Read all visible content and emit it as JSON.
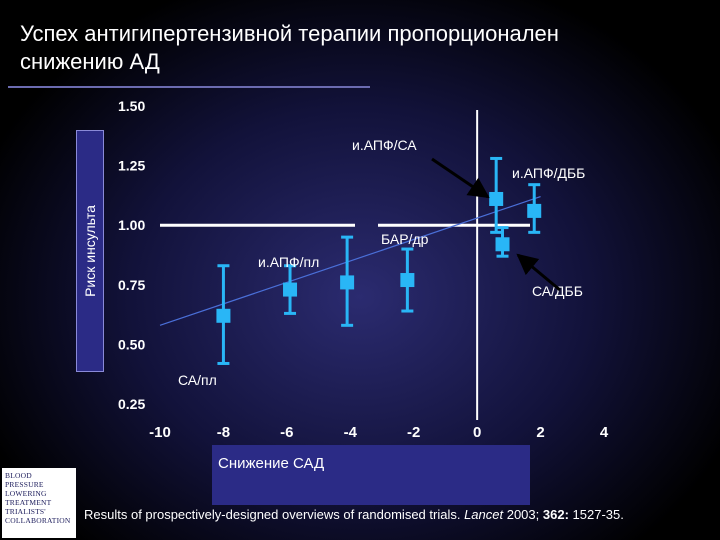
{
  "slide": {
    "title": "Успех антигипертензивной терапии пропорционален снижению АД",
    "citation_prefix": "Results of prospectively-designed overviews of randomised trials. ",
    "citation_journal": "Lancet",
    "citation_year": " 2003; ",
    "citation_volume": "362:",
    "citation_pages": " 1527-35.",
    "logo_lines": [
      "BLOOD",
      "PRESSURE",
      "LOWERING",
      "TREATMENT",
      "TRIALISTS'",
      "COLLABORATION"
    ]
  },
  "colors": {
    "marker": "#29b6f6",
    "axis": "#ffffff",
    "regression": "#4a6fd8",
    "text": "#ffffff",
    "label_box": "#2b2b86"
  },
  "chart_data": {
    "type": "scatter",
    "xlabel": "Снижение САД",
    "ylabel": "Риск инсульта",
    "xlim": [
      -10,
      4
    ],
    "ylim": [
      0.25,
      1.5
    ],
    "x_ticks": [
      -10,
      -8,
      -6,
      -4,
      -2,
      0,
      2,
      4
    ],
    "y_ticks": [
      0.25,
      0.5,
      0.75,
      1.0,
      1.25,
      1.5
    ],
    "x_tick_labels": [
      "-10",
      "-8",
      "-6",
      "-4",
      "-2",
      "0",
      "2",
      "4"
    ],
    "y_tick_labels": [
      "0.25",
      "0.50",
      "0.75",
      "1.00",
      "1.25",
      "1.50"
    ],
    "reference_lines": {
      "y": 1.0,
      "x": 0
    },
    "regression_line": {
      "x": [
        -10,
        2
      ],
      "y": [
        0.58,
        1.12
      ]
    },
    "points": [
      {
        "x": -8.0,
        "y": 0.62,
        "low": 0.42,
        "high": 0.83
      },
      {
        "x": -5.9,
        "y": 0.73,
        "low": 0.63,
        "high": 0.83
      },
      {
        "x": -4.1,
        "y": 0.76,
        "low": 0.58,
        "high": 0.95
      },
      {
        "x": -2.2,
        "y": 0.77,
        "low": 0.64,
        "high": 0.9
      },
      {
        "x": 0.6,
        "y": 1.11,
        "low": 0.97,
        "high": 1.28
      },
      {
        "x": 1.8,
        "y": 1.06,
        "low": 0.97,
        "high": 1.17
      },
      {
        "x": 0.8,
        "y": 0.92,
        "low": 0.87,
        "high": 0.99
      }
    ],
    "annotations": [
      {
        "text": "и.АПФ/СА"
      },
      {
        "text": "и.АПФ/ДББ"
      },
      {
        "text": "БАР/др"
      },
      {
        "text": "и.АПФ/пл"
      },
      {
        "text": "СА/ДББ"
      },
      {
        "text": "СА/пл"
      }
    ]
  }
}
